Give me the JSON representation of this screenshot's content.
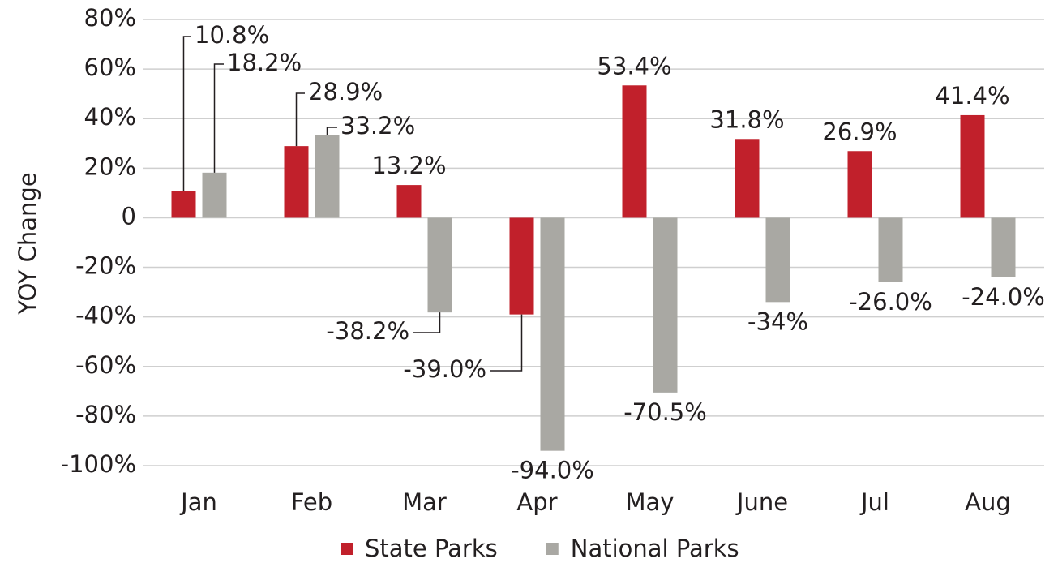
{
  "chart_data": {
    "type": "bar",
    "categories": [
      "Jan",
      "Feb",
      "Mar",
      "Apr",
      "May",
      "June",
      "Jul",
      "Aug"
    ],
    "y_label": "YOY Change",
    "series": [
      {
        "name": "State Parks",
        "color": "#c1202b",
        "values": [
          10.8,
          28.9,
          13.2,
          -39.0,
          53.4,
          31.8,
          26.9,
          41.4
        ],
        "value_labels": [
          "10.8%",
          "28.9%",
          "13.2%",
          "-39.0%",
          "53.4%",
          "31.8%",
          "26.9%",
          "41.4%"
        ]
      },
      {
        "name": "National Parks",
        "color": "#a9a8a3",
        "values": [
          18.2,
          33.2,
          -38.2,
          -94.0,
          -70.5,
          -34,
          -26.0,
          -24.0
        ],
        "value_labels": [
          "18.2%",
          "33.2%",
          "-38.2%",
          "-94.0%",
          "-70.5%",
          "-34%",
          "-26.0%",
          "-24.0%"
        ]
      }
    ],
    "ylim": [
      -100,
      80
    ],
    "yticks": [
      {
        "value": -100,
        "label": "-100%"
      },
      {
        "value": -80,
        "label": "-80%"
      },
      {
        "value": -60,
        "label": "-60%"
      },
      {
        "value": -40,
        "label": "-40%"
      },
      {
        "value": -20,
        "label": "-20%"
      },
      0,
      {
        "value": 20,
        "label": "20%"
      },
      {
        "value": 40,
        "label": "40%"
      },
      {
        "value": 60,
        "label": "60%"
      },
      {
        "value": 80,
        "label": "80%"
      }
    ],
    "grid": true,
    "legend": "bottom"
  }
}
